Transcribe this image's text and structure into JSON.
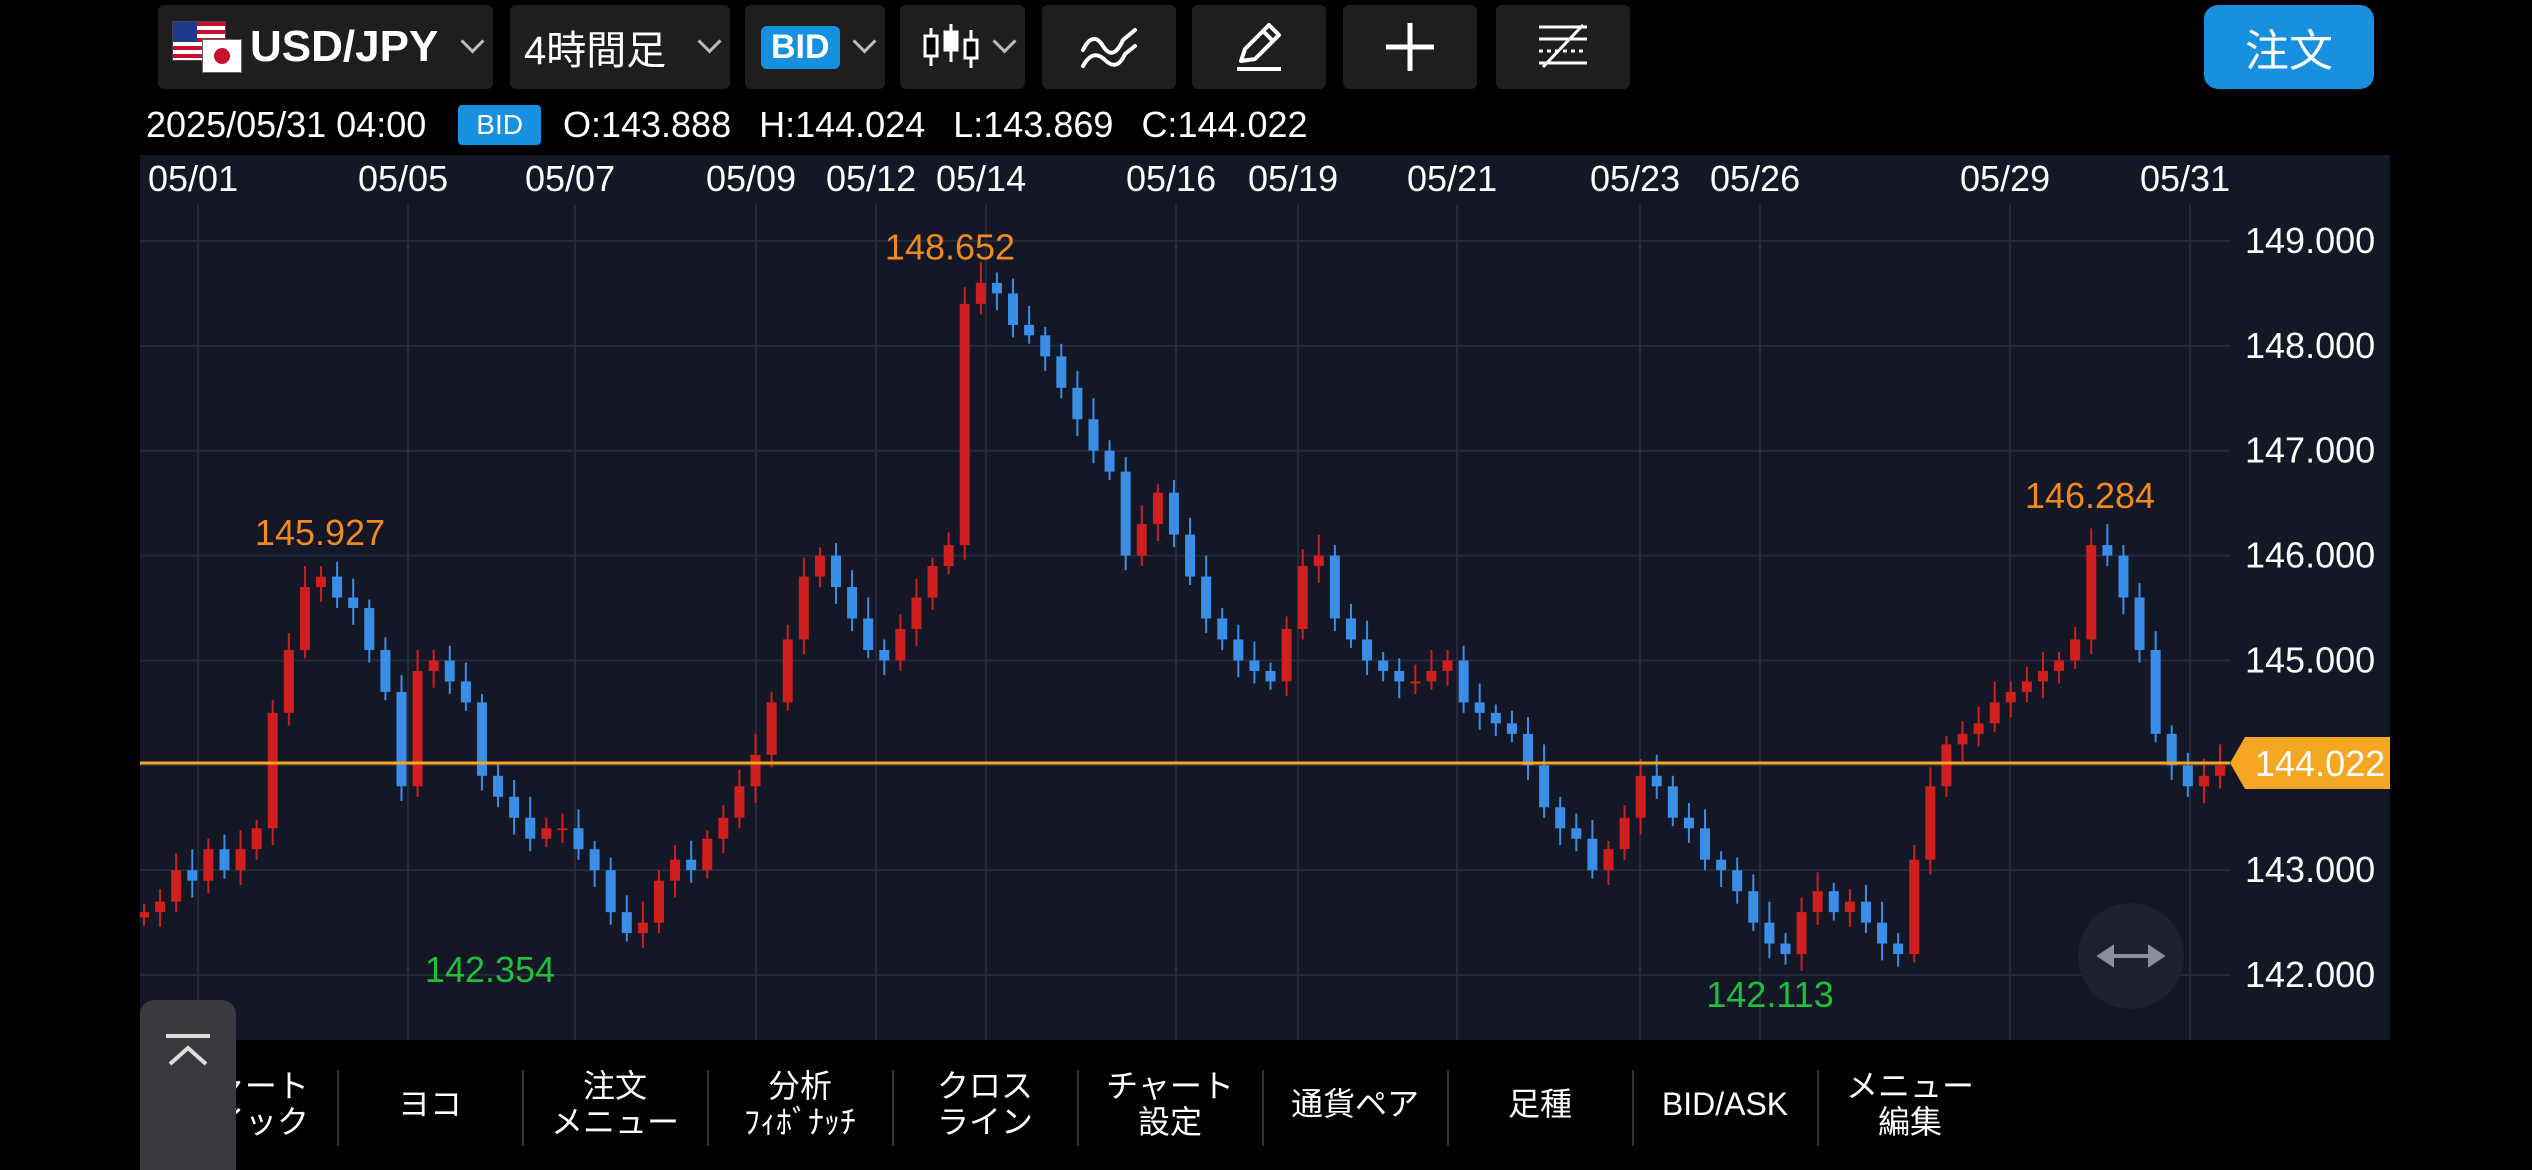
{
  "toolbar": {
    "pair": "USD/JPY",
    "timeframe": "4時間足",
    "price_type": "BID",
    "order": "注文",
    "icons": [
      "flag-us-jp-icon",
      "candlestick-icon",
      "indicator-icon",
      "pencil-icon",
      "crosshair-icon",
      "lines-icon"
    ]
  },
  "info": {
    "timestamp": "2025/05/31 04:00",
    "badge": "BID",
    "open": "O:143.888",
    "high": "H:144.024",
    "low": "L:143.869",
    "close": "C:144.022"
  },
  "chart_data": {
    "type": "candlestick",
    "x_labels": [
      "05/01",
      "05/05",
      "05/07",
      "05/09",
      "05/12",
      "05/14",
      "05/16",
      "05/19",
      "05/21",
      "05/23",
      "05/26",
      "05/29",
      "05/31"
    ],
    "y_ticks": [
      "149.000",
      "148.000",
      "147.000",
      "146.000",
      "145.000",
      "144.000",
      "143.000",
      "142.000"
    ],
    "ylim": [
      141.6,
      149.2
    ],
    "current_price": "144.022",
    "annotations": [
      {
        "text": "145.927",
        "value": 145.927,
        "kind": "high"
      },
      {
        "text": "142.354",
        "value": 142.354,
        "kind": "low"
      },
      {
        "text": "148.652",
        "value": 148.652,
        "kind": "high"
      },
      {
        "text": "142.113",
        "value": 142.113,
        "kind": "low"
      },
      {
        "text": "146.284",
        "value": 146.284,
        "kind": "high"
      }
    ],
    "close_path": [
      142.6,
      142.7,
      143.0,
      142.9,
      143.2,
      143.0,
      143.2,
      143.4,
      144.5,
      145.1,
      145.7,
      145.8,
      145.6,
      145.5,
      145.1,
      144.7,
      143.8,
      144.9,
      145.0,
      144.8,
      144.6,
      143.9,
      143.7,
      143.5,
      143.3,
      143.4,
      143.4,
      143.2,
      143.0,
      142.6,
      142.4,
      142.5,
      142.9,
      143.1,
      143.0,
      143.3,
      143.5,
      143.8,
      144.1,
      144.6,
      145.2,
      145.8,
      146.0,
      145.7,
      145.4,
      145.1,
      145.0,
      145.3,
      145.6,
      145.9,
      146.1,
      148.4,
      148.6,
      148.5,
      148.2,
      148.1,
      147.9,
      147.6,
      147.3,
      147.0,
      146.8,
      146.0,
      146.3,
      146.6,
      146.2,
      145.8,
      145.4,
      145.2,
      145.0,
      144.9,
      144.8,
      145.3,
      145.9,
      146.0,
      145.4,
      145.2,
      145.0,
      144.9,
      144.8,
      144.8,
      144.9,
      145.0,
      144.6,
      144.5,
      144.4,
      144.3,
      144.0,
      143.6,
      143.4,
      143.3,
      143.0,
      143.2,
      143.5,
      143.9,
      143.8,
      143.5,
      143.4,
      143.1,
      143.0,
      142.8,
      142.5,
      142.3,
      142.2,
      142.6,
      142.8,
      142.6,
      142.7,
      142.5,
      142.3,
      142.2,
      143.1,
      143.8,
      144.2,
      144.3,
      144.4,
      144.6,
      144.7,
      144.8,
      144.9,
      145.0,
      145.2,
      146.1,
      146.0,
      145.6,
      145.1,
      144.3,
      144.0,
      143.8,
      143.9,
      144.0
    ]
  },
  "menu": [
    {
      "line1": "チャート",
      "line2": "クイック"
    },
    {
      "line1": "ヨコ",
      "line2": ""
    },
    {
      "line1": "注文",
      "line2": "メニュー"
    },
    {
      "line1": "分析",
      "line2": "ﾌｨﾎﾞﾅｯﾁ"
    },
    {
      "line1": "クロス",
      "line2": "ライン"
    },
    {
      "line1": "チャート",
      "line2": "設定"
    },
    {
      "line1": "通貨ペア",
      "line2": ""
    },
    {
      "line1": "足種",
      "line2": ""
    },
    {
      "line1": "BID/ASK",
      "line2": ""
    },
    {
      "line1": "メニュー",
      "line2": "編集"
    }
  ],
  "colors": {
    "up": "#d01f1f",
    "down": "#3a8ee6",
    "price_line": "#f5a623",
    "high_label": "#f08a1c",
    "low_label": "#1fbf3a",
    "grid": "#252a3a"
  }
}
